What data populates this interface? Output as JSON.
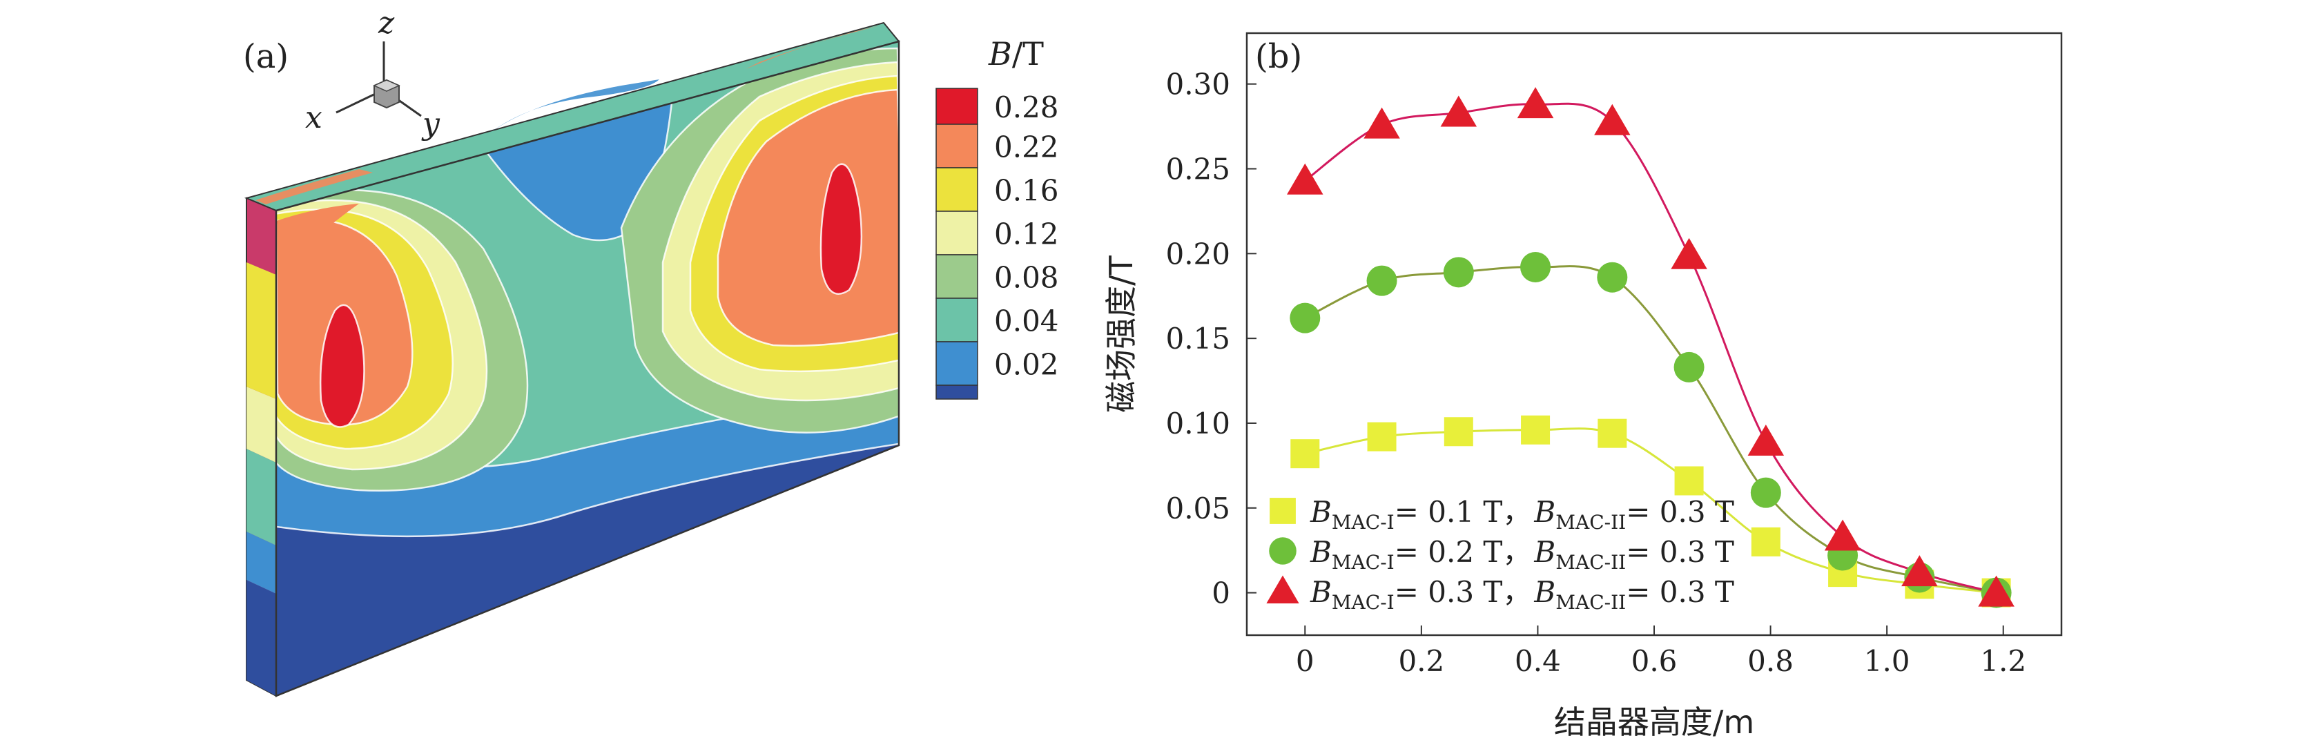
{
  "panel_a": {
    "label": "(a)",
    "axes": {
      "z": "z",
      "x": "x",
      "y": "y"
    },
    "colorbar": {
      "title_var": "B",
      "title_unit": "/T",
      "levels": [
        {
          "label": "0.28",
          "color": "#e0192a"
        },
        {
          "label": "0.22",
          "color": "#f4885a"
        },
        {
          "label": "0.16",
          "color": "#ece23d"
        },
        {
          "label": "0.12",
          "color": "#eef2a6"
        },
        {
          "label": "0.08",
          "color": "#9ccb8c"
        },
        {
          "label": "0.04",
          "color": "#6cc3a8"
        },
        {
          "label": "0.02",
          "color": "#3f8fd0"
        },
        {
          "label": "",
          "color": "#2f4e9e"
        }
      ]
    }
  },
  "chart_data": {
    "type": "line",
    "panel_label": "(b)",
    "xlabel": "结晶器高度/m",
    "ylabel": "磁场强度/T",
    "xlim": [
      -0.1,
      1.3
    ],
    "ylim": [
      -0.025,
      0.33
    ],
    "xticks": [
      {
        "value": 0,
        "label": "0"
      },
      {
        "value": 0.2,
        "label": "0.2"
      },
      {
        "value": 0.4,
        "label": "0.4"
      },
      {
        "value": 0.6,
        "label": "0.6"
      },
      {
        "value": 0.8,
        "label": "0.8"
      },
      {
        "value": 1.0,
        "label": "1.0"
      },
      {
        "value": 1.2,
        "label": "1.2"
      }
    ],
    "yticks": [
      {
        "value": 0,
        "label": "0"
      },
      {
        "value": 0.05,
        "label": "0.05"
      },
      {
        "value": 0.1,
        "label": "0.10"
      },
      {
        "value": 0.15,
        "label": "0.15"
      },
      {
        "value": 0.2,
        "label": "0.20"
      },
      {
        "value": 0.25,
        "label": "0.25"
      },
      {
        "value": 0.3,
        "label": "0.30"
      }
    ],
    "x": [
      0,
      0.132,
      0.264,
      0.396,
      0.528,
      0.66,
      0.792,
      0.924,
      1.056,
      1.188
    ],
    "series": [
      {
        "name": "B_MAC-I = 0.1 T, B_MAC-II = 0.3 T",
        "marker": "square",
        "color": "#e8ef3a",
        "line_color": "#d7e63a",
        "values": [
          0.082,
          0.092,
          0.095,
          0.096,
          0.094,
          0.066,
          0.03,
          0.012,
          0.005,
          0.0
        ]
      },
      {
        "name": "B_MAC-I = 0.2 T, B_MAC-II = 0.3 T",
        "marker": "circle",
        "color": "#6ec03a",
        "line_color": "#8a9a3a",
        "values": [
          0.162,
          0.184,
          0.189,
          0.192,
          0.186,
          0.133,
          0.059,
          0.022,
          0.009,
          0.0
        ]
      },
      {
        "name": "B_MAC-I = 0.3 T, B_MAC-II = 0.3 T",
        "marker": "triangle",
        "color": "#e11e2b",
        "line_color": "#d2195e",
        "values": [
          0.243,
          0.276,
          0.283,
          0.288,
          0.278,
          0.199,
          0.089,
          0.033,
          0.012,
          0.0
        ]
      }
    ],
    "legend": {
      "placement": "bottom-left",
      "entries": [
        {
          "b1": "B",
          "b1_sub": "MAC-I",
          "b1_val": "= 0.1 T，",
          "b2": "B",
          "b2_sub": "MAC-II",
          "b2_val": "= 0.3 T"
        },
        {
          "b1": "B",
          "b1_sub": "MAC-I",
          "b1_val": "= 0.2 T，",
          "b2": "B",
          "b2_sub": "MAC-II",
          "b2_val": "= 0.3 T"
        },
        {
          "b1": "B",
          "b1_sub": "MAC-I",
          "b1_val": "= 0.3 T，",
          "b2": "B",
          "b2_sub": "MAC-II",
          "b2_val": "= 0.3 T"
        }
      ]
    }
  }
}
